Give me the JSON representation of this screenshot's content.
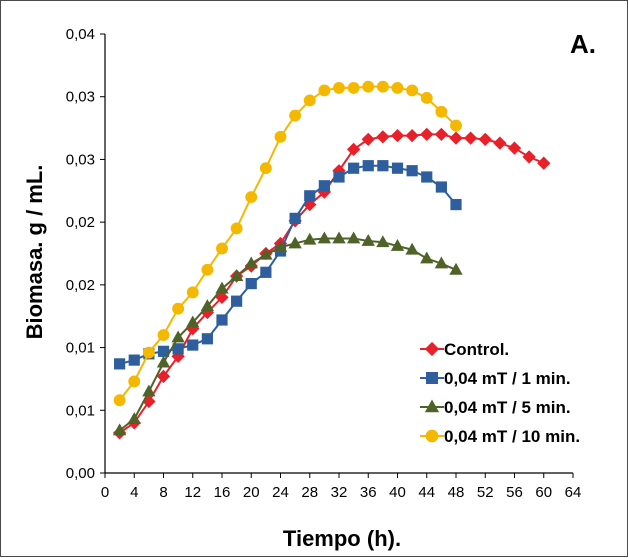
{
  "chart_data": {
    "type": "line",
    "title": "",
    "panel_label": "A.",
    "xlabel": "Tiempo (h).",
    "ylabel": "Biomasa. g / mL.",
    "xlim": [
      0,
      64
    ],
    "ylim": [
      0,
      0.035
    ],
    "x_ticks": [
      0,
      4,
      8,
      12,
      16,
      20,
      24,
      28,
      32,
      36,
      40,
      44,
      48,
      52,
      56,
      60,
      64
    ],
    "x_tick_labels": [
      "0",
      "4",
      "8",
      "12",
      "16",
      "20",
      "24",
      "28",
      "32",
      "36",
      "40",
      "44",
      "48",
      "52",
      "56",
      "60",
      "64"
    ],
    "y_ticks": [
      0,
      0.005,
      0.01,
      0.015,
      0.02,
      0.025,
      0.03,
      0.035
    ],
    "y_tick_labels": [
      "0,00",
      "0,01",
      "0,01",
      "0,02",
      "0,02",
      "0,03",
      "0,03",
      "0,04"
    ],
    "grid": false,
    "legend_position": "bottom-right",
    "series": [
      {
        "name": "Control.",
        "color": "#e8202a",
        "marker": "diamond",
        "x": [
          2,
          4,
          6,
          8,
          10,
          12,
          14,
          16,
          18,
          20,
          22,
          24,
          26,
          28,
          30,
          32,
          34,
          36,
          38,
          40,
          42,
          44,
          46,
          48,
          50,
          52,
          54,
          56,
          58,
          60
        ],
        "y": [
          0.0032,
          0.004,
          0.0057,
          0.0077,
          0.0093,
          0.0115,
          0.0128,
          0.014,
          0.0157,
          0.0165,
          0.0175,
          0.0183,
          0.0201,
          0.0214,
          0.0224,
          0.0241,
          0.0258,
          0.0266,
          0.0268,
          0.0269,
          0.0269,
          0.027,
          0.027,
          0.0267,
          0.0267,
          0.0266,
          0.0263,
          0.0259,
          0.0252,
          0.0247
        ]
      },
      {
        "name": "0,04 mT / 1 min.",
        "color": "#2e5e9e",
        "marker": "square",
        "x": [
          2,
          4,
          6,
          8,
          10,
          12,
          14,
          16,
          18,
          20,
          22,
          24,
          26,
          28,
          30,
          32,
          34,
          36,
          38,
          40,
          42,
          44,
          46,
          48
        ],
        "y": [
          0.0087,
          0.009,
          0.0095,
          0.0097,
          0.0099,
          0.0102,
          0.0107,
          0.0122,
          0.0137,
          0.0151,
          0.016,
          0.0177,
          0.0203,
          0.0221,
          0.0229,
          0.0236,
          0.0243,
          0.0245,
          0.0245,
          0.0243,
          0.0241,
          0.0236,
          0.0228,
          0.0214
        ]
      },
      {
        "name": "0,04 mT / 5 min.",
        "color": "#4f6228",
        "marker": "triangle",
        "x": [
          2,
          4,
          6,
          8,
          10,
          12,
          14,
          16,
          18,
          20,
          22,
          24,
          26,
          28,
          30,
          32,
          34,
          36,
          38,
          40,
          42,
          44,
          46,
          48
        ],
        "y": [
          0.0034,
          0.0043,
          0.0065,
          0.0088,
          0.0108,
          0.012,
          0.0133,
          0.0147,
          0.0157,
          0.0167,
          0.0174,
          0.018,
          0.0183,
          0.0186,
          0.0187,
          0.0187,
          0.0187,
          0.0185,
          0.0184,
          0.0181,
          0.0178,
          0.0171,
          0.0167,
          0.0162
        ]
      },
      {
        "name": "0,04 mT / 10 min.",
        "color": "#f5b800",
        "marker": "circle",
        "x": [
          2,
          4,
          6,
          8,
          10,
          12,
          14,
          16,
          18,
          20,
          22,
          24,
          26,
          28,
          30,
          32,
          34,
          36,
          38,
          40,
          42,
          44,
          46,
          48
        ],
        "y": [
          0.0058,
          0.0073,
          0.0096,
          0.011,
          0.0131,
          0.0144,
          0.0162,
          0.0179,
          0.0195,
          0.022,
          0.0243,
          0.0268,
          0.0285,
          0.0297,
          0.0305,
          0.0307,
          0.0307,
          0.0308,
          0.0308,
          0.0307,
          0.0305,
          0.0299,
          0.0288,
          0.0277
        ]
      }
    ]
  }
}
